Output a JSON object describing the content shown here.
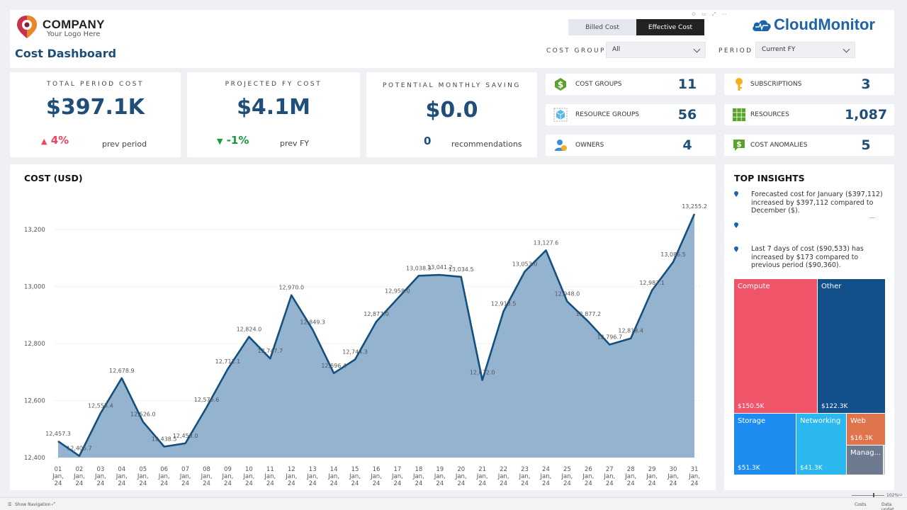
{
  "header": {
    "company": "COMPANY",
    "tagline": "Your Logo Here",
    "title": "Cost Dashboard",
    "brand": "CloudMonitor",
    "toggle": [
      "Billed Cost",
      "Effective Cost"
    ],
    "toggle_active": "Effective Cost",
    "cost_group_label": "COST GROUP",
    "cost_group_value": "All",
    "period_label": "PERIOD",
    "period_value": "Current FY"
  },
  "kpis": {
    "total": {
      "caption": "TOTAL PERIOD COST",
      "value": "$397.1K",
      "delta": "4%",
      "note": "prev period"
    },
    "projected": {
      "caption": "PROJECTED FY COST",
      "value": "$4.1M",
      "delta": "-1%",
      "note": "prev FY"
    },
    "saving": {
      "caption": "POTENTIAL MONTHLY SAVING",
      "value": "$0.0",
      "count": "0",
      "note": "recommendations"
    }
  },
  "stats": {
    "cost_groups": {
      "label": "COST GROUPS",
      "value": "11",
      "icon": "dollar-icon"
    },
    "resource_groups": {
      "label": "RESOURCE GROUPS",
      "value": "56",
      "icon": "cube-icon"
    },
    "owners": {
      "label": "OWNERS",
      "value": "4",
      "icon": "user-icon"
    },
    "subscriptions": {
      "label": "SUBSCRIPTIONS",
      "value": "3",
      "icon": "key-icon"
    },
    "resources": {
      "label": "RESOURCES",
      "value": "1,087",
      "icon": "grid-icon"
    },
    "anomalies": {
      "label": "COST ANOMALIES",
      "value": "5",
      "icon": "dollar-alert-icon"
    }
  },
  "chart_data": {
    "type": "area",
    "title": "COST (USD)",
    "x": [
      "01",
      "02",
      "03",
      "04",
      "05",
      "06",
      "07",
      "08",
      "09",
      "10",
      "11",
      "12",
      "13",
      "14",
      "15",
      "16",
      "17",
      "18",
      "19",
      "20",
      "21",
      "22",
      "23",
      "24",
      "25",
      "26",
      "27",
      "28",
      "29",
      "30",
      "31"
    ],
    "x_sub": [
      "Jan,",
      "24"
    ],
    "values": [
      12457.3,
      12405.7,
      12555.4,
      12678.9,
      12526.0,
      12438.5,
      12450.0,
      12576.6,
      12711.1,
      12824.0,
      12747.7,
      12970.0,
      12849.3,
      12696.4,
      12744.3,
      12877.0,
      12958.0,
      13038.3,
      13041.2,
      13034.5,
      12672.0,
      12913.5,
      13053.0,
      13127.6,
      12948.0,
      12877.2,
      12796.7,
      12818.4,
      12987.1,
      13086.5,
      13255.2
    ],
    "labels": [
      "12,457.3",
      "12,405.7",
      "12,555.4",
      "12,678.9",
      "12,526.0",
      "12,438.5",
      "12,450.0",
      "12,576.6",
      "12,711.1",
      "12,824.0",
      "12,747.7",
      "12,970.0",
      "12,849.3",
      "12,696.4",
      "12,744.3",
      "12,877.0",
      "12,958.0",
      "13,038.3",
      "13,041.2",
      "13,034.5",
      "12,672.0",
      "12,913.5",
      "13,053.0",
      "13,127.6",
      "12,948.0",
      "12,877.2",
      "12,796.7",
      "12,818.4",
      "12,987.1",
      "13,086.5",
      "13,255.2"
    ],
    "y_ticks": [
      12400,
      12600,
      12800,
      13000,
      13200
    ],
    "y_tick_labels": [
      "12,400",
      "12,600",
      "12,800",
      "13,000",
      "13,200"
    ],
    "ylim": [
      12400,
      13310
    ],
    "grid": true,
    "line_color": "#14507f",
    "fill_color": "#93b3cf"
  },
  "insights": {
    "title": "TOP INSIGHTS",
    "items": [
      "Forecasted cost for January ($397,112) increased by $397,112 compared to December ($).",
      "",
      "Last 7 days of cost ($90,533) has increased by $173 compared to previous period ($90,360)."
    ]
  },
  "treemap": {
    "tiles": [
      {
        "name": "Compute",
        "value": "$150.5K",
        "color": "#f05468"
      },
      {
        "name": "Other",
        "value": "$122.3K",
        "color": "#11508a"
      },
      {
        "name": "Storage",
        "value": "$51.3K",
        "color": "#1c8cf0"
      },
      {
        "name": "Networking",
        "value": "$41.3K",
        "color": "#2ab8ef"
      },
      {
        "name": "Web",
        "value": "$16.3K",
        "color": "#e0744d"
      },
      {
        "name": "Manag...",
        "value": "",
        "color": "#6d7a8f"
      }
    ]
  },
  "statusbar": {
    "nav": "Show Navigation",
    "zoom": "102%",
    "page": "Costs",
    "updated": "Data updat..."
  }
}
